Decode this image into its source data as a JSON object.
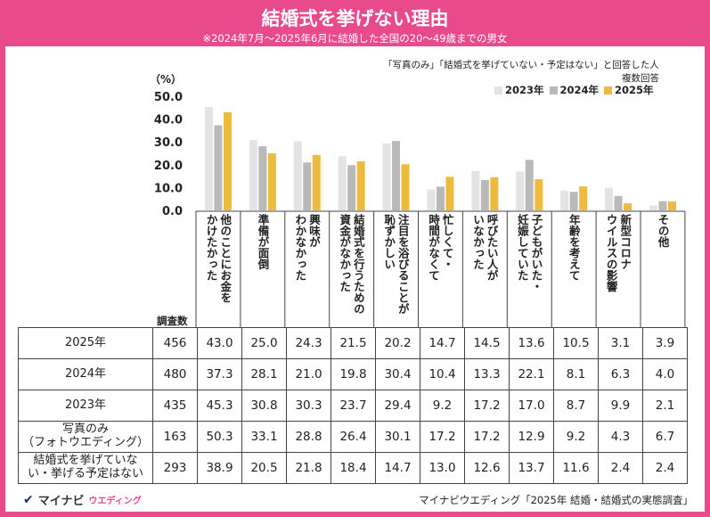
{
  "header": {
    "title": "結婚式を挙げない理由",
    "subtitle": "※2024年7月～2025年6月に結婚した全国の20～49歳までの男女"
  },
  "notes": {
    "respondents": "「写真のみ」「結婚式を挙げていない・予定はない」と回答した人",
    "multiple": "複数回答"
  },
  "legend": [
    {
      "label": "2023年",
      "color": "#e3e3e3"
    },
    {
      "label": "2024年",
      "color": "#b9b9b9"
    },
    {
      "label": "2025年",
      "color": "#eebb3e"
    }
  ],
  "unit_label": "（%）",
  "chart_data": {
    "type": "bar",
    "categories": [
      "他のことにお金を\nかけたかった",
      "準備が面倒",
      "興味が\nわかなかった",
      "結婚式を行うための\n資金がなかった",
      "注目を浴びることが\n恥ずかしい",
      "忙しくて・\n時間がなくて",
      "呼びたい人が\nいなかった",
      "子どもがいた・\n妊娠していた",
      "年齢を考えて",
      "新型コロナ\nウイルスの影響",
      "その他"
    ],
    "series": [
      {
        "name": "2023年",
        "values": [
          45.3,
          30.8,
          30.3,
          23.7,
          29.4,
          9.2,
          17.2,
          17.0,
          8.7,
          9.9,
          2.1
        ]
      },
      {
        "name": "2024年",
        "values": [
          37.3,
          28.1,
          21.0,
          19.8,
          30.4,
          10.4,
          13.3,
          22.1,
          8.1,
          6.3,
          4.0
        ]
      },
      {
        "name": "2025年",
        "values": [
          43.0,
          25.0,
          24.3,
          21.5,
          20.2,
          14.7,
          14.5,
          13.6,
          10.5,
          3.1,
          3.9
        ]
      }
    ],
    "ylim": [
      0,
      50
    ],
    "yticks": [
      "50.0",
      "40.0",
      "30.0",
      "20.0",
      "10.0",
      "0.0"
    ],
    "grid": false
  },
  "table": {
    "count_header": "調査数",
    "rows": [
      {
        "label": "2025年",
        "count": "456",
        "values": [
          "43.0",
          "25.0",
          "24.3",
          "21.5",
          "20.2",
          "14.7",
          "14.5",
          "13.6",
          "10.5",
          "3.1",
          "3.9"
        ]
      },
      {
        "label": "2024年",
        "count": "480",
        "values": [
          "37.3",
          "28.1",
          "21.0",
          "19.8",
          "30.4",
          "10.4",
          "13.3",
          "22.1",
          "8.1",
          "6.3",
          "4.0"
        ]
      },
      {
        "label": "2023年",
        "count": "435",
        "values": [
          "45.3",
          "30.8",
          "30.3",
          "23.7",
          "29.4",
          "9.2",
          "17.2",
          "17.0",
          "8.7",
          "9.9",
          "2.1"
        ]
      },
      {
        "label": "写真のみ\n（フォトウエディング）",
        "count": "163",
        "values": [
          "50.3",
          "33.1",
          "28.8",
          "26.4",
          "30.1",
          "17.2",
          "17.2",
          "12.9",
          "9.2",
          "4.3",
          "6.7"
        ]
      },
      {
        "label": "結婚式を挙げていな\nい・挙げる予定はない",
        "count": "293",
        "values": [
          "38.9",
          "20.5",
          "21.8",
          "18.4",
          "14.7",
          "13.0",
          "12.6",
          "13.7",
          "11.6",
          "2.4",
          "2.4"
        ]
      }
    ]
  },
  "footer": {
    "logo_mark": "✔",
    "brand": "マイナビ",
    "brand_sub": "ウエディング",
    "source": "マイナビウエディング「2025年 結婚・結婚式の実態調査」"
  }
}
